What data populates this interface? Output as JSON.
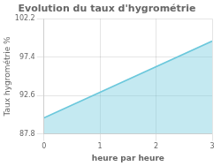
{
  "chart_data": {
    "type": "area",
    "title": "Evolution du taux d'hygrométrie",
    "xlabel": "heure par heure",
    "ylabel": "Taux hygrométrie %",
    "x": [
      0,
      3
    ],
    "values": [
      89.8,
      99.4
    ],
    "color": "#6cc8dc",
    "xlim": [
      0,
      3
    ],
    "xticks": [
      0,
      1,
      2,
      3
    ],
    "ylim": [
      87.8,
      102.2
    ],
    "yticks": [
      87.8,
      92.6,
      97.4,
      102.2
    ],
    "grid": true
  }
}
